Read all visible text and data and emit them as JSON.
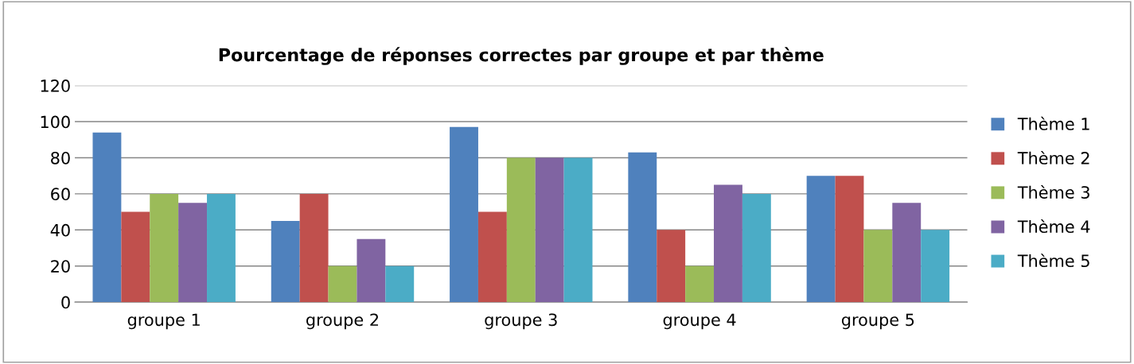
{
  "chart_data": {
    "type": "bar",
    "title": "Pourcentage de réponses correctes par groupe et par thème",
    "categories": [
      "groupe 1",
      "groupe 2",
      "groupe 3",
      "groupe 4",
      "groupe 5"
    ],
    "series": [
      {
        "name": "Thème 1",
        "color": "#4f81bd",
        "values": [
          94,
          45,
          97,
          83,
          70
        ]
      },
      {
        "name": "Thème 2",
        "color": "#c0504d",
        "values": [
          50,
          60,
          50,
          40,
          70
        ]
      },
      {
        "name": "Thème 3",
        "color": "#9bbb59",
        "values": [
          60,
          20,
          80,
          20,
          40
        ]
      },
      {
        "name": "Thème 4",
        "color": "#8064a2",
        "values": [
          55,
          35,
          80,
          65,
          55
        ]
      },
      {
        "name": "Thème 5",
        "color": "#4bacc6",
        "values": [
          60,
          20,
          80,
          60,
          40
        ]
      }
    ],
    "ylim": [
      0,
      120
    ],
    "yticks": [
      0,
      20,
      40,
      60,
      80,
      100,
      120
    ],
    "grid": "y",
    "legend": "right"
  }
}
